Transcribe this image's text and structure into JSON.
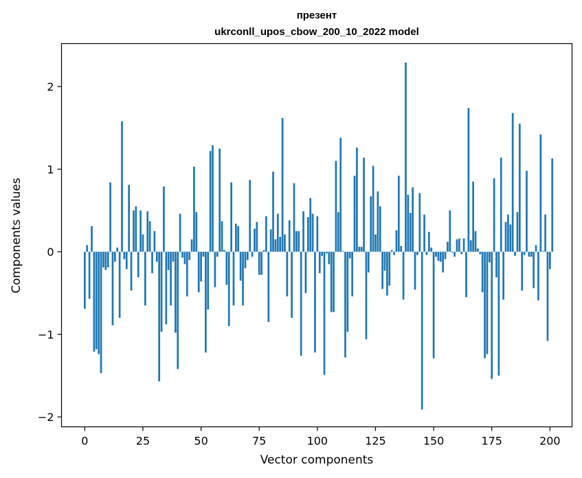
{
  "chart_data": {
    "type": "bar",
    "title": "презент",
    "subtitle": "ukrconll_upos_cbow_200_10_2022 model",
    "xlabel": "Vector components",
    "ylabel": "Components values",
    "xlim": [
      -10,
      209.5
    ],
    "ylim": [
      -2.12,
      2.52
    ],
    "x_ticks": [
      0,
      25,
      50,
      75,
      100,
      125,
      150,
      175,
      200
    ],
    "y_ticks": [
      -2,
      -1,
      0,
      1,
      2
    ],
    "y_tick_labels": [
      "−2",
      "−1",
      "0",
      "1",
      "2"
    ],
    "bar_color": "#1f77b4",
    "grid": false,
    "legend": "none",
    "values": [
      -0.69,
      0.08,
      -0.57,
      0.31,
      -1.21,
      -1.18,
      -1.24,
      -1.47,
      -0.19,
      -0.22,
      -0.19,
      0.84,
      -0.89,
      -0.12,
      0.05,
      -0.8,
      1.58,
      -0.09,
      -0.21,
      0.81,
      -0.47,
      0.5,
      0.55,
      -0.31,
      0.5,
      0.21,
      -0.65,
      0.49,
      0.37,
      -0.26,
      0.25,
      -0.12,
      -1.57,
      -0.97,
      0.79,
      -0.88,
      -0.22,
      -0.65,
      -0.12,
      -0.98,
      -1.42,
      0.46,
      -0.07,
      -0.15,
      -0.54,
      -0.1,
      0.15,
      1.03,
      0.48,
      -0.49,
      -0.36,
      -0.06,
      -1.22,
      -0.7,
      1.22,
      1.29,
      -0.43,
      -0.06,
      1.25,
      0.37,
      0.02,
      -0.4,
      -0.9,
      0.84,
      -0.65,
      0.34,
      0.31,
      -0.35,
      -0.65,
      -0.2,
      -0.1,
      0.87,
      -0.06,
      0.28,
      0.36,
      -0.28,
      -0.28,
      0.02,
      0.43,
      -0.85,
      0.27,
      0.97,
      0.15,
      0.46,
      0.18,
      1.62,
      0.21,
      -0.54,
      0.38,
      -0.8,
      0.83,
      0.25,
      0.25,
      -1.26,
      0.49,
      -0.5,
      0.42,
      0.65,
      0.46,
      -1.22,
      0.43,
      -0.26,
      -0.05,
      -1.49,
      -0.02,
      -0.15,
      -0.73,
      -0.73,
      1.1,
      0.48,
      1.38,
      0.01,
      -1.28,
      -0.97,
      -0.08,
      -0.54,
      0.92,
      1.26,
      0.06,
      0.06,
      1.14,
      -1.06,
      -0.25,
      0.67,
      1.04,
      0.21,
      0.73,
      0.55,
      -0.45,
      -0.23,
      -0.53,
      -0.41,
      0.02,
      -0.04,
      0.26,
      0.92,
      0.07,
      -0.58,
      2.29,
      0.69,
      0.47,
      0.78,
      -0.46,
      -0.04,
      0.71,
      -1.91,
      0.45,
      -0.04,
      0.24,
      0.05,
      -1.29,
      -0.06,
      -0.11,
      -0.12,
      -0.25,
      -0.09,
      0.12,
      0.5,
      -0.01,
      -0.06,
      0.15,
      0.16,
      -0.03,
      0.16,
      -0.55,
      1.74,
      0.14,
      0.85,
      0.25,
      0.04,
      -0.03,
      -0.49,
      -1.29,
      -1.24,
      -0.13,
      -1.54,
      0.89,
      -0.31,
      -1.5,
      1.14,
      -0.58,
      0.36,
      0.45,
      0.33,
      1.68,
      -0.05,
      0.48,
      1.55,
      -0.47,
      -0.04,
      0.98,
      -0.06,
      -0.06,
      -0.44,
      0.08,
      -0.59,
      1.42,
      0.01,
      0.45,
      -1.08,
      -0.21,
      1.13
    ]
  }
}
